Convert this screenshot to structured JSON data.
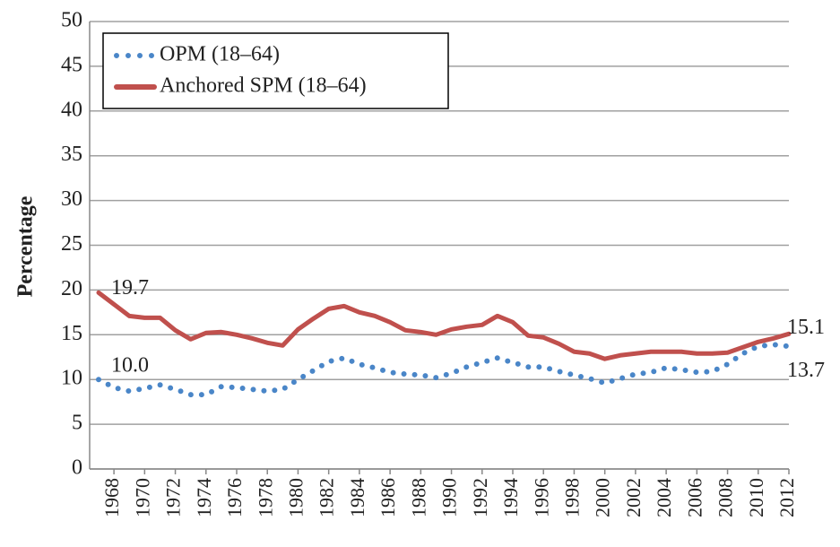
{
  "chart_data": {
    "type": "line",
    "y_label": "Percentage",
    "x": [
      1967,
      1968,
      1969,
      1970,
      1971,
      1972,
      1973,
      1974,
      1975,
      1976,
      1977,
      1978,
      1979,
      1980,
      1981,
      1982,
      1983,
      1984,
      1985,
      1986,
      1987,
      1988,
      1989,
      1990,
      1991,
      1992,
      1993,
      1994,
      1995,
      1996,
      1997,
      1998,
      1999,
      2000,
      2001,
      2002,
      2003,
      2004,
      2005,
      2006,
      2007,
      2008,
      2009,
      2010,
      2011,
      2012
    ],
    "series": [
      {
        "name": "OPM (18–64)",
        "color": "#4a86c8",
        "style": "dotted",
        "values": [
          10.0,
          9.1,
          8.7,
          9.0,
          9.4,
          8.9,
          8.3,
          8.3,
          9.2,
          9.1,
          8.9,
          8.7,
          8.9,
          10.0,
          11.0,
          12.0,
          12.4,
          11.7,
          11.3,
          10.8,
          10.6,
          10.5,
          10.2,
          10.7,
          11.4,
          11.9,
          12.4,
          11.9,
          11.4,
          11.4,
          10.9,
          10.5,
          10.1,
          9.6,
          10.1,
          10.6,
          10.8,
          11.3,
          11.1,
          10.8,
          10.9,
          11.7,
          12.9,
          13.7,
          13.9,
          13.7
        ],
        "value_labels": [
          "10.0",
          null,
          null,
          null,
          null,
          null,
          null,
          null,
          null,
          null,
          null,
          null,
          null,
          null,
          null,
          null,
          null,
          null,
          null,
          null,
          null,
          null,
          null,
          null,
          null,
          null,
          null,
          null,
          null,
          null,
          null,
          null,
          null,
          null,
          null,
          null,
          null,
          null,
          null,
          null,
          null,
          null,
          null,
          null,
          null,
          "13.7"
        ]
      },
      {
        "name": "Anchored SPM (18–64)",
        "color": "#c0504d",
        "style": "solid",
        "values": [
          19.7,
          18.4,
          17.1,
          16.9,
          16.9,
          15.5,
          14.5,
          15.2,
          15.3,
          15.0,
          14.6,
          14.1,
          13.8,
          15.6,
          16.8,
          17.9,
          18.2,
          17.5,
          17.1,
          16.4,
          15.5,
          15.3,
          15.0,
          15.6,
          15.9,
          16.1,
          17.1,
          16.4,
          14.9,
          14.7,
          14.0,
          13.1,
          12.9,
          12.3,
          12.7,
          12.9,
          13.1,
          13.1,
          13.1,
          12.9,
          12.9,
          13.0,
          13.6,
          14.2,
          14.6,
          15.1
        ],
        "value_labels": [
          "19.7",
          null,
          null,
          null,
          null,
          null,
          null,
          null,
          null,
          null,
          null,
          null,
          null,
          null,
          null,
          null,
          null,
          null,
          null,
          null,
          null,
          null,
          null,
          null,
          null,
          null,
          null,
          null,
          null,
          null,
          null,
          null,
          null,
          null,
          null,
          null,
          null,
          null,
          null,
          null,
          null,
          null,
          null,
          null,
          null,
          "15.1"
        ]
      }
    ],
    "xlim": [
      1967,
      2012
    ],
    "xticks": [
      1968,
      1970,
      1972,
      1974,
      1976,
      1978,
      1980,
      1982,
      1984,
      1986,
      1988,
      1990,
      1992,
      1994,
      1996,
      1998,
      2000,
      2002,
      2004,
      2006,
      2008,
      2010,
      2012
    ],
    "ylim": [
      0,
      50
    ],
    "yticks": [
      0,
      5,
      10,
      15,
      20,
      25,
      30,
      35,
      40,
      45,
      50
    ],
    "grid": true,
    "legend": "top-left"
  }
}
